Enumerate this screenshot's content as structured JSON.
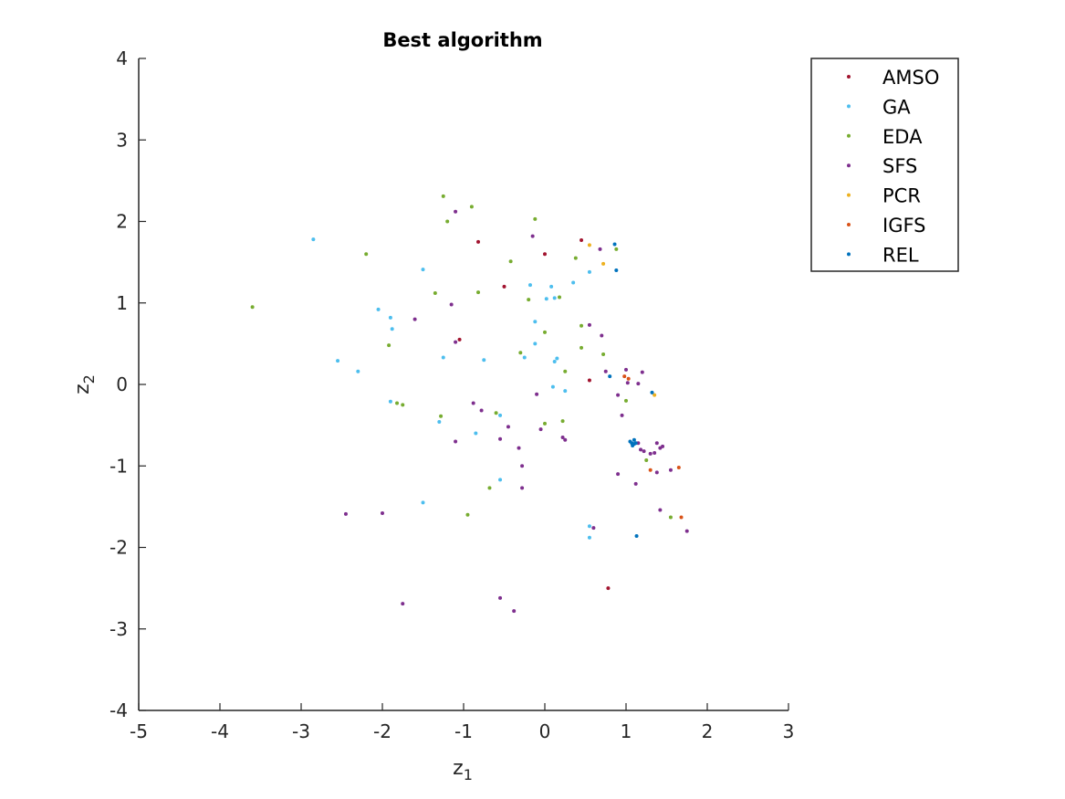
{
  "chart_data": {
    "type": "scatter",
    "title": "Best algorithm",
    "xlabel": "z_1",
    "ylabel": "z_2",
    "xlim": [
      -5,
      3
    ],
    "ylim": [
      -4,
      4
    ],
    "xticks": [
      "-5",
      "-4",
      "-3",
      "-2",
      "-1",
      "0",
      "1",
      "2",
      "3"
    ],
    "yticks": [
      "-4",
      "-3",
      "-2",
      "-1",
      "0",
      "1",
      "2",
      "3",
      "4"
    ],
    "grid": false,
    "legend_position": "top-right",
    "series": [
      {
        "name": "AMSO",
        "color": "#A2142F",
        "points": [
          [
            0.45,
            1.77
          ],
          [
            0.0,
            1.6
          ],
          [
            -0.82,
            1.75
          ],
          [
            -1.05,
            0.55
          ],
          [
            0.78,
            -2.5
          ],
          [
            0.55,
            0.05
          ],
          [
            -0.5,
            1.2
          ]
        ]
      },
      {
        "name": "GA",
        "color": "#4DBEEE",
        "points": [
          [
            -2.85,
            1.78
          ],
          [
            -1.5,
            1.41
          ],
          [
            -0.18,
            1.22
          ],
          [
            0.08,
            1.2
          ],
          [
            0.35,
            1.25
          ],
          [
            0.55,
            1.38
          ],
          [
            0.12,
            1.06
          ],
          [
            0.02,
            1.05
          ],
          [
            -2.05,
            0.92
          ],
          [
            -1.9,
            0.82
          ],
          [
            -1.88,
            0.68
          ],
          [
            -0.12,
            0.77
          ],
          [
            -0.12,
            0.5
          ],
          [
            -2.55,
            0.29
          ],
          [
            -1.25,
            0.33
          ],
          [
            -0.75,
            0.3
          ],
          [
            -0.25,
            0.33
          ],
          [
            0.12,
            0.28
          ],
          [
            0.15,
            0.32
          ],
          [
            -2.3,
            0.16
          ],
          [
            0.1,
            -0.03
          ],
          [
            0.25,
            -0.08
          ],
          [
            -1.9,
            -0.21
          ],
          [
            -1.3,
            -0.46
          ],
          [
            -0.55,
            -0.38
          ],
          [
            -0.85,
            -0.6
          ],
          [
            -0.55,
            -1.17
          ],
          [
            -1.5,
            -1.45
          ],
          [
            0.55,
            -1.74
          ],
          [
            0.55,
            -1.88
          ]
        ]
      },
      {
        "name": "EDA",
        "color": "#77AC30",
        "points": [
          [
            -1.25,
            2.31
          ],
          [
            -0.9,
            2.18
          ],
          [
            -1.2,
            2.0
          ],
          [
            -0.12,
            2.03
          ],
          [
            -2.2,
            1.6
          ],
          [
            -0.42,
            1.51
          ],
          [
            0.38,
            1.55
          ],
          [
            -1.35,
            1.12
          ],
          [
            -0.82,
            1.13
          ],
          [
            0.18,
            1.07
          ],
          [
            -0.2,
            1.04
          ],
          [
            -3.6,
            0.95
          ],
          [
            0.45,
            0.72
          ],
          [
            0.0,
            0.64
          ],
          [
            -1.92,
            0.48
          ],
          [
            0.45,
            0.45
          ],
          [
            0.72,
            0.37
          ],
          [
            -0.3,
            0.39
          ],
          [
            0.25,
            0.16
          ],
          [
            1.0,
            -0.2
          ],
          [
            -1.82,
            -0.23
          ],
          [
            -1.75,
            -0.25
          ],
          [
            -1.28,
            -0.39
          ],
          [
            0.0,
            -0.48
          ],
          [
            0.22,
            -0.45
          ],
          [
            -0.6,
            -0.35
          ],
          [
            -0.68,
            -1.27
          ],
          [
            -0.95,
            -1.6
          ],
          [
            1.25,
            -0.93
          ],
          [
            1.55,
            -1.63
          ],
          [
            0.88,
            1.66
          ]
        ]
      },
      {
        "name": "SFS",
        "color": "#7E2F8E",
        "points": [
          [
            -1.1,
            2.12
          ],
          [
            -0.15,
            1.82
          ],
          [
            0.68,
            1.66
          ],
          [
            -1.6,
            0.8
          ],
          [
            -1.15,
            0.98
          ],
          [
            0.55,
            0.73
          ],
          [
            0.7,
            0.6
          ],
          [
            -1.1,
            0.52
          ],
          [
            0.75,
            0.16
          ],
          [
            1.0,
            0.18
          ],
          [
            1.2,
            0.15
          ],
          [
            1.02,
            0.02
          ],
          [
            1.15,
            0.01
          ],
          [
            0.9,
            -0.13
          ],
          [
            0.95,
            -0.38
          ],
          [
            -0.1,
            -0.12
          ],
          [
            -0.88,
            -0.23
          ],
          [
            -0.78,
            -0.32
          ],
          [
            -0.45,
            -0.52
          ],
          [
            -0.05,
            -0.55
          ],
          [
            -0.55,
            -0.67
          ],
          [
            -1.1,
            -0.7
          ],
          [
            0.25,
            -0.68
          ],
          [
            -0.32,
            -0.78
          ],
          [
            1.22,
            -0.82
          ],
          [
            1.3,
            -0.85
          ],
          [
            1.35,
            -0.84
          ],
          [
            1.38,
            -0.72
          ],
          [
            1.42,
            -0.78
          ],
          [
            1.45,
            -0.76
          ],
          [
            1.18,
            -0.8
          ],
          [
            1.15,
            -0.72
          ],
          [
            0.9,
            -1.1
          ],
          [
            1.12,
            -1.22
          ],
          [
            1.55,
            -1.05
          ],
          [
            1.38,
            -1.08
          ],
          [
            -0.28,
            -1.0
          ],
          [
            -0.28,
            -1.27
          ],
          [
            1.42,
            -1.54
          ],
          [
            1.75,
            -1.8
          ],
          [
            0.6,
            -1.76
          ],
          [
            -2.45,
            -1.59
          ],
          [
            -2.0,
            -1.58
          ],
          [
            -1.75,
            -2.69
          ],
          [
            -0.55,
            -2.62
          ],
          [
            -0.38,
            -2.78
          ],
          [
            0.22,
            -0.65
          ]
        ]
      },
      {
        "name": "PCR",
        "color": "#EDB120",
        "points": [
          [
            0.55,
            1.71
          ],
          [
            0.72,
            1.48
          ],
          [
            1.35,
            -0.13
          ]
        ]
      },
      {
        "name": "IGFS",
        "color": "#D95319",
        "points": [
          [
            0.98,
            0.1
          ],
          [
            1.03,
            0.07
          ],
          [
            1.3,
            -1.05
          ],
          [
            1.65,
            -1.02
          ],
          [
            1.68,
            -1.63
          ]
        ]
      },
      {
        "name": "REL",
        "color": "#0072BD",
        "points": [
          [
            0.86,
            1.72
          ],
          [
            0.88,
            1.4
          ],
          [
            0.8,
            0.1
          ],
          [
            1.32,
            -0.1
          ],
          [
            1.05,
            -0.7
          ],
          [
            1.07,
            -0.72
          ],
          [
            1.1,
            -0.73
          ],
          [
            1.08,
            -0.75
          ],
          [
            1.12,
            -0.72
          ],
          [
            1.1,
            -0.68
          ],
          [
            1.13,
            -1.86
          ]
        ]
      }
    ]
  }
}
